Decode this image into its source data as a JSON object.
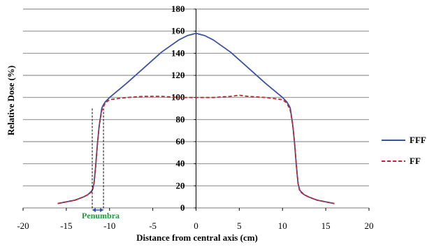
{
  "chart_data": {
    "type": "line",
    "xlabel": "Distance from central axis (cm)",
    "ylabel": "Relative Dose (%)",
    "xlim": [
      -20,
      20
    ],
    "ylim": [
      0,
      180
    ],
    "xticks": [
      -20,
      -15,
      -10,
      -5,
      0,
      5,
      10,
      15,
      20
    ],
    "yticks": [
      0,
      20,
      40,
      60,
      80,
      100,
      120,
      140,
      160,
      180
    ],
    "grid": "horizontal",
    "legend": "right",
    "annotation": {
      "text": "Penumbra",
      "x_range": [
        -12.0,
        -10.7
      ]
    },
    "series": [
      {
        "name": "FFF",
        "color": "#3b52a3",
        "dash": "solid",
        "x": [
          -16,
          -14,
          -13,
          -12.5,
          -12,
          -11.8,
          -11.6,
          -11.4,
          -11.2,
          -11.0,
          -10.9,
          -10.8,
          -10.5,
          -10,
          -8,
          -6,
          -4,
          -2,
          -1,
          0,
          1,
          2,
          4,
          6,
          8,
          10,
          10.5,
          10.8,
          10.9,
          11.0,
          11.2,
          11.4,
          11.6,
          11.8,
          12,
          12.5,
          13,
          14,
          16
        ],
        "y": [
          4,
          7,
          10,
          12,
          16,
          22,
          38,
          58,
          74,
          85,
          90,
          92,
          96,
          100,
          113,
          127,
          141,
          152,
          156,
          158,
          156,
          152,
          141,
          127,
          113,
          100,
          96,
          92,
          90,
          85,
          74,
          58,
          38,
          22,
          16,
          12,
          10,
          7,
          4
        ]
      },
      {
        "name": "FF",
        "color": "#c0282d",
        "dash": "dashed",
        "x": [
          -16,
          -14,
          -13,
          -12.5,
          -12,
          -11.8,
          -11.6,
          -11.4,
          -11.2,
          -11.0,
          -10.9,
          -10.8,
          -10.5,
          -10,
          -8,
          -6,
          -4,
          -2,
          0,
          2,
          4,
          5,
          6,
          8,
          10,
          10.5,
          10.8,
          10.9,
          11.0,
          11.2,
          11.4,
          11.6,
          11.8,
          12,
          12.5,
          13,
          14,
          16
        ],
        "y": [
          4,
          7,
          10,
          12,
          15,
          22,
          38,
          58,
          74,
          84,
          88,
          90,
          95,
          98,
          100,
          101,
          101,
          100,
          100,
          100,
          101,
          102,
          101,
          100,
          98,
          95,
          90,
          88,
          84,
          74,
          58,
          38,
          22,
          15,
          12,
          10,
          7,
          4
        ]
      }
    ]
  }
}
